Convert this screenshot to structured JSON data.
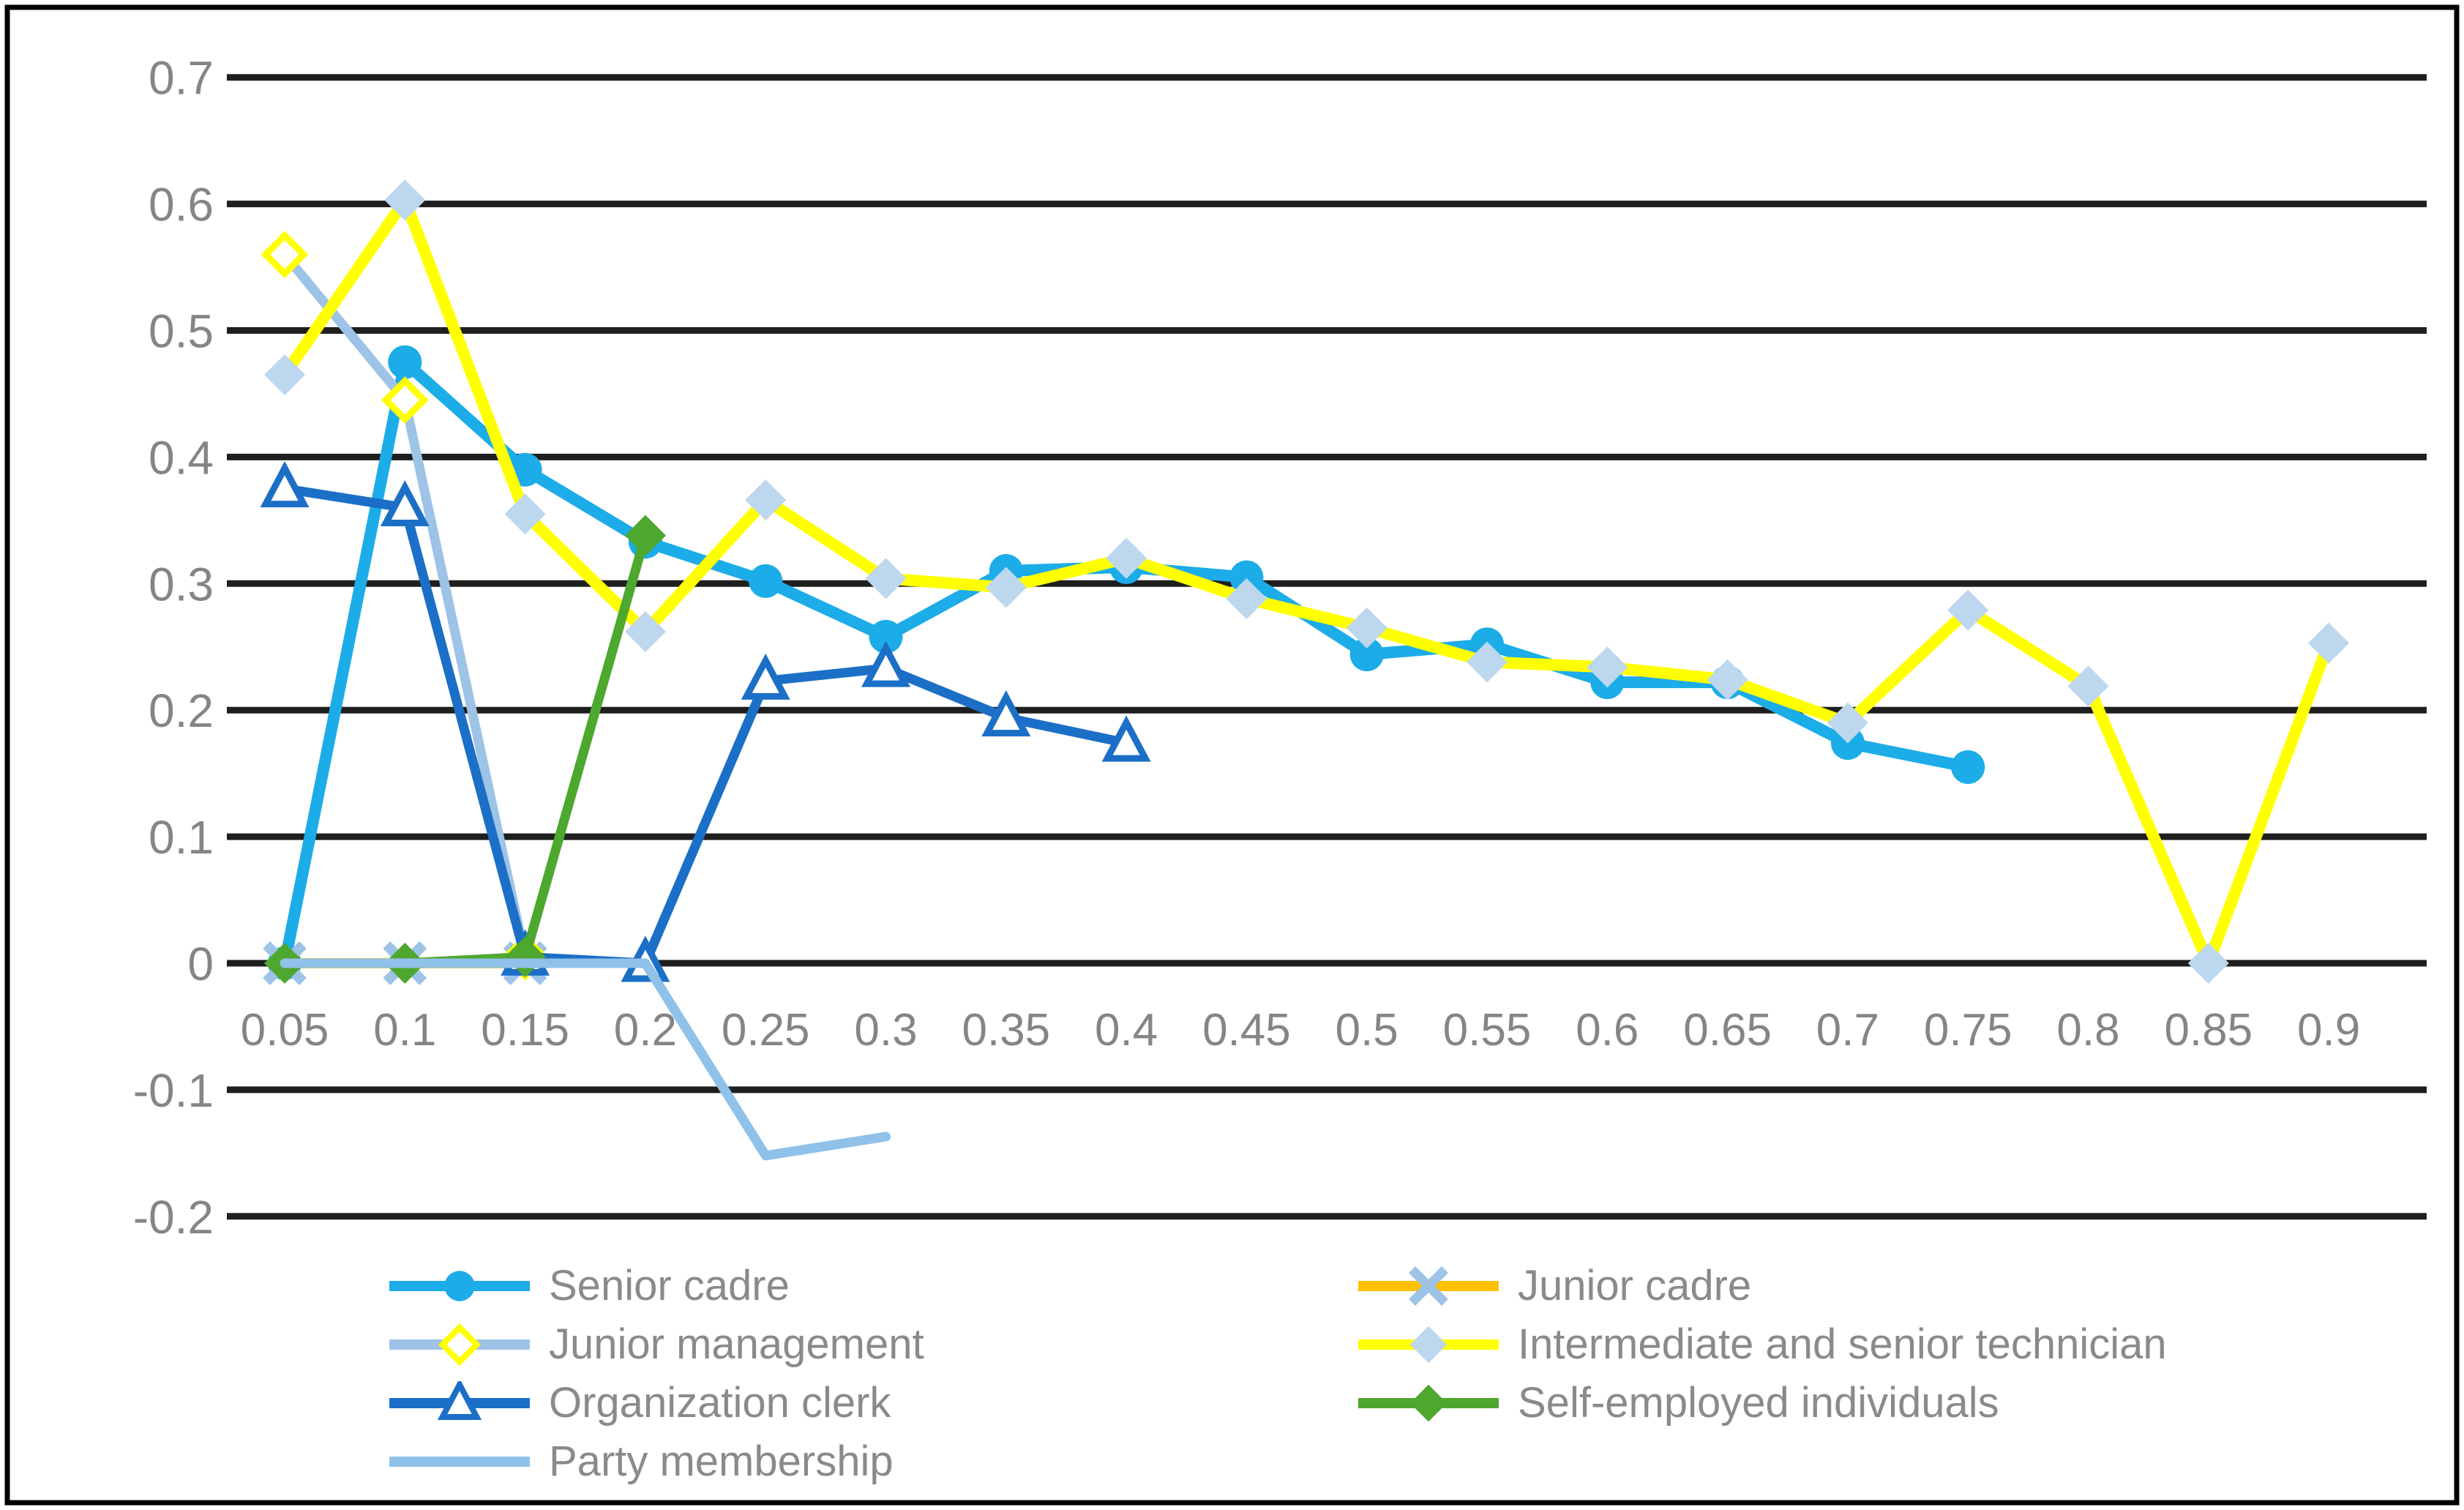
{
  "chart_data": {
    "type": "line",
    "title": "",
    "xlabel": "",
    "ylabel": "",
    "x_categories": [
      "0.05",
      "0.1",
      "0.15",
      "0.2",
      "0.25",
      "0.3",
      "0.35",
      "0.4",
      "0.45",
      "0.5",
      "0.55",
      "0.6",
      "0.65",
      "0.7",
      "0.75",
      "0.8",
      "0.85",
      "0.9"
    ],
    "y_ticks": [
      "0.7",
      "0.6",
      "0.5",
      "0.4",
      "0.3",
      "0.2",
      "0.1",
      "0",
      "-0.1",
      "-0.2"
    ],
    "ylim": [
      -0.2,
      0.7
    ],
    "grid": "horizontal-only",
    "gridline_color": "#1f1f1f",
    "axis_label_color": "#858585",
    "legend_text_color": "#8a8a8a",
    "legend_position": "bottom-two-columns",
    "series": [
      {
        "name": "Senior cadre",
        "color": "#1CACE8",
        "marker": "circle-filled",
        "marker_color": "#1CACE8",
        "line_width": 16,
        "values": [
          0,
          0.475,
          0.39,
          0.333,
          0.302,
          0.258,
          0.31,
          0.313,
          0.305,
          0.244,
          0.252,
          0.222,
          0.222,
          0.174,
          0.155
        ]
      },
      {
        "name": "Junior cadre",
        "color": "#FFC000",
        "marker": "x-cross",
        "marker_color": "#9DC3E6",
        "line_width": 14,
        "values": [
          0,
          0,
          0
        ]
      },
      {
        "name": "Junior management",
        "color": "#9DC3E6",
        "marker": "diamond-hollow",
        "marker_color": "#FFFF00",
        "line_width": 13,
        "values": [
          0.56,
          0.445,
          0.005
        ]
      },
      {
        "name": "Intermediate and senior technician",
        "color": "#FFFF00",
        "marker": "diamond-filled",
        "marker_color": "#BDD7EE",
        "line_width": 16,
        "values": [
          0.465,
          0.603,
          0.355,
          0.262,
          0.366,
          0.304,
          0.297,
          0.32,
          0.288,
          0.265,
          0.238,
          0.234,
          0.224,
          0.19,
          0.279,
          0.219,
          0,
          0.253
        ]
      },
      {
        "name": "Organization clerk",
        "color": "#1B6FC7",
        "marker": "triangle-hollow",
        "marker_color": "#1B6FC7",
        "line_width": 13,
        "values": [
          0.375,
          0.36,
          0.005,
          0,
          0.223,
          0.233,
          0.194,
          0.174
        ]
      },
      {
        "name": "Self-employed individuals",
        "color": "#4EA72E",
        "marker": "diamond-filled",
        "marker_color": "#4EA72E",
        "line_width": 13,
        "values": [
          0,
          0,
          0.005,
          0.338
        ]
      },
      {
        "name": "Party membership",
        "color": "#8FC1E9",
        "marker": "none",
        "marker_color": "",
        "line_width": 13,
        "values": [
          0,
          0,
          0,
          0,
          -0.152,
          -0.137
        ]
      }
    ]
  }
}
